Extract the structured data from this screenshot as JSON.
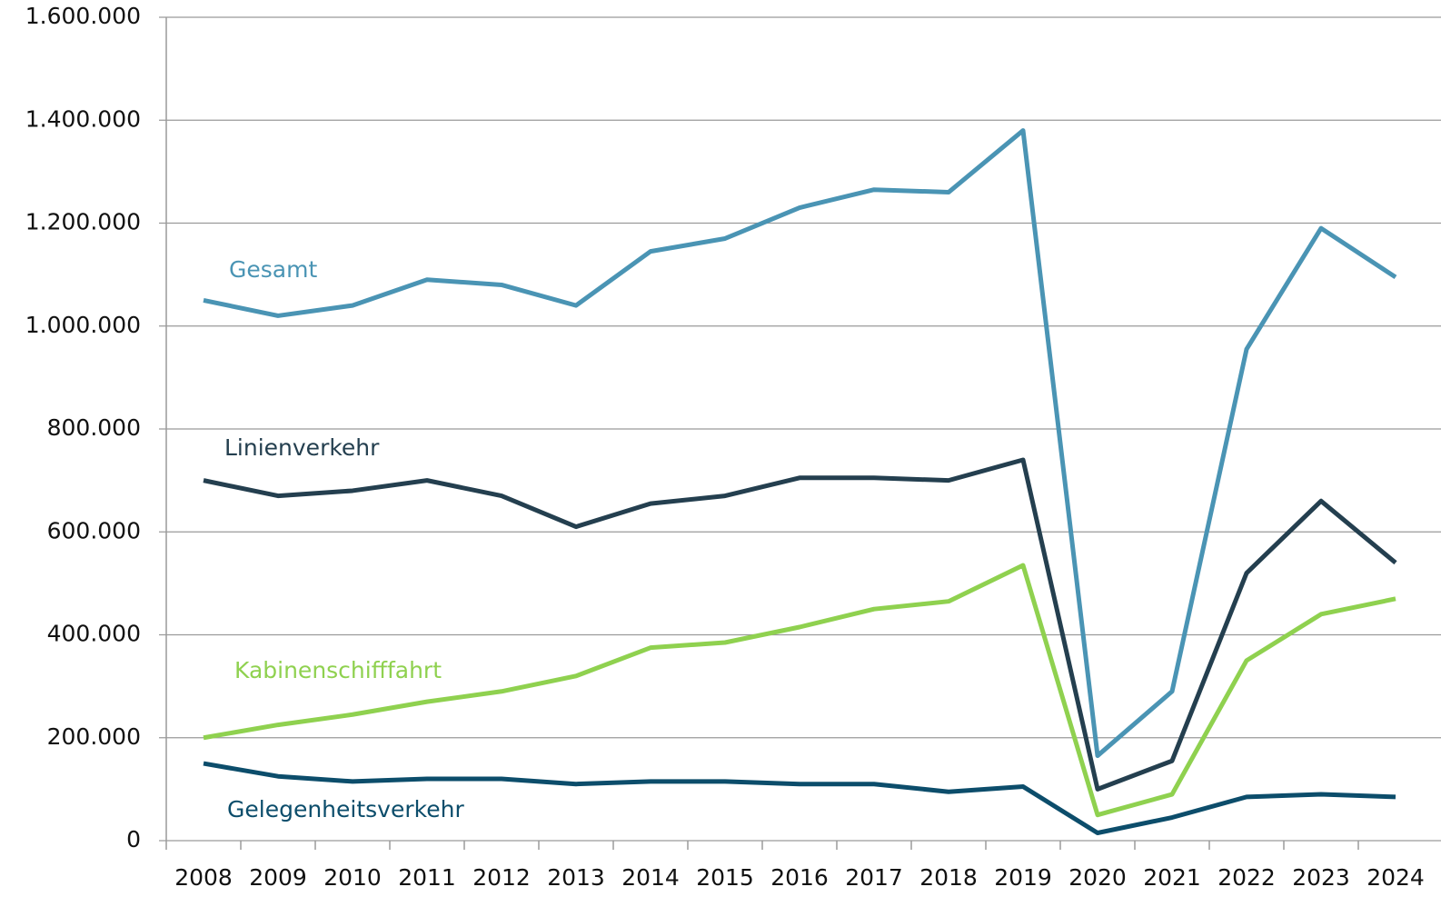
{
  "chart_data": {
    "type": "line",
    "categories": [
      "2008",
      "2009",
      "2010",
      "2011",
      "2012",
      "2013",
      "2014",
      "2015",
      "2016",
      "2017",
      "2018",
      "2019",
      "2020",
      "2021",
      "2022",
      "2023",
      "2024"
    ],
    "series": [
      {
        "name": "Gesamt",
        "color": "#4a94b4",
        "values": [
          1050000,
          1020000,
          1040000,
          1090000,
          1080000,
          1040000,
          1145000,
          1170000,
          1230000,
          1265000,
          1260000,
          1380000,
          165000,
          290000,
          955000,
          1190000,
          1095000
        ]
      },
      {
        "name": "Linienverkehr",
        "color": "#243f4f",
        "values": [
          700000,
          670000,
          680000,
          700000,
          670000,
          610000,
          655000,
          670000,
          705000,
          705000,
          700000,
          740000,
          100000,
          155000,
          520000,
          660000,
          540000
        ]
      },
      {
        "name": "Kabinenschifffahrt",
        "color": "#8fd14f",
        "values": [
          200000,
          225000,
          245000,
          270000,
          290000,
          320000,
          375000,
          385000,
          415000,
          450000,
          465000,
          535000,
          50000,
          90000,
          350000,
          440000,
          470000
        ]
      },
      {
        "name": "Gelegenheitsverkehr",
        "color": "#0c4d6b",
        "values": [
          150000,
          125000,
          115000,
          120000,
          120000,
          110000,
          115000,
          115000,
          110000,
          110000,
          95000,
          105000,
          15000,
          45000,
          85000,
          90000,
          85000
        ]
      }
    ],
    "ylim": [
      0,
      1600000
    ],
    "yticks": [
      0,
      {
        "value": 200000,
        "label": "200.000"
      },
      {
        "value": 400000,
        "label": "400.000"
      },
      {
        "value": 600000,
        "label": "600.000"
      },
      {
        "value": 800000,
        "label": "800.000"
      },
      {
        "value": 1000000,
        "label": "1.000.000"
      },
      {
        "value": 1200000,
        "label": "1.200.000"
      },
      {
        "value": 1400000,
        "label": "1.400.000"
      },
      {
        "value": 1600000,
        "label": "1.600.000"
      }
    ],
    "grid": true
  }
}
